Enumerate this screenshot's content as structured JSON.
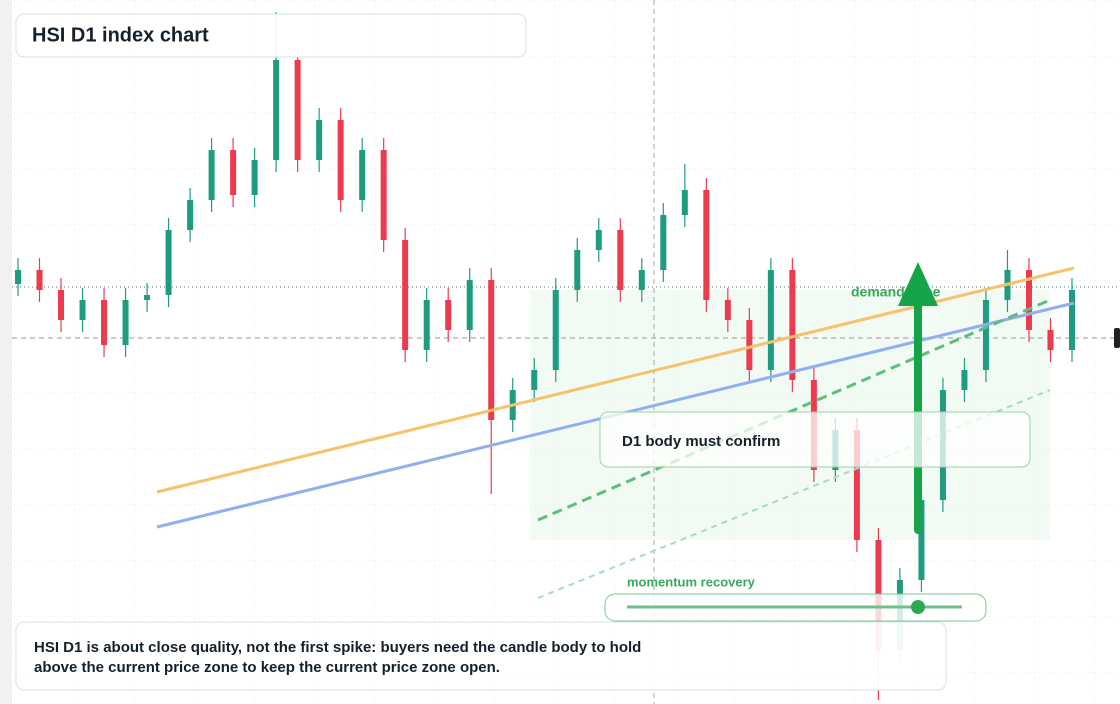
{
  "chart_data": {
    "type": "candlestick",
    "title": "HSI D1 index chart",
    "open": [
      420,
      434,
      414,
      384,
      404,
      359,
      404,
      409,
      474,
      504,
      554,
      509,
      544,
      644,
      544,
      584,
      504,
      554,
      464,
      354,
      404,
      374,
      424,
      284,
      314,
      334,
      414,
      454,
      474,
      414,
      434,
      489,
      514,
      404,
      384,
      334,
      434,
      324,
      234,
      274,
      164,
      54,
      124,
      204,
      314,
      334,
      404,
      434,
      374,
      354
    ],
    "high": [
      446,
      446,
      426,
      416,
      416,
      416,
      421,
      486,
      516,
      566,
      566,
      556,
      692,
      656,
      596,
      596,
      566,
      566,
      476,
      416,
      416,
      436,
      436,
      326,
      346,
      426,
      466,
      486,
      486,
      446,
      501,
      540,
      526,
      416,
      396,
      446,
      446,
      336,
      286,
      286,
      176,
      136,
      216,
      326,
      346,
      416,
      454,
      446,
      386,
      426
    ],
    "low": [
      408,
      402,
      372,
      372,
      347,
      347,
      392,
      397,
      462,
      492,
      497,
      497,
      532,
      532,
      532,
      492,
      492,
      452,
      342,
      342,
      362,
      362,
      210,
      272,
      302,
      322,
      402,
      442,
      402,
      402,
      422,
      477,
      392,
      372,
      322,
      322,
      312,
      222,
      222,
      152,
      4,
      42,
      112,
      192,
      302,
      322,
      392,
      362,
      342,
      342
    ],
    "close": [
      434,
      414,
      384,
      404,
      359,
      404,
      409,
      474,
      504,
      554,
      509,
      544,
      644,
      544,
      584,
      504,
      554,
      464,
      354,
      404,
      374,
      424,
      284,
      314,
      334,
      414,
      454,
      474,
      414,
      434,
      489,
      514,
      404,
      384,
      334,
      434,
      324,
      234,
      274,
      164,
      54,
      124,
      204,
      314,
      334,
      404,
      434,
      374,
      354,
      414
    ],
    "up_color": "#1f9c80",
    "down_color": "#ec3b4e",
    "ylim": [
      0,
      704
    ],
    "annotations": {
      "zone_label": "demand zone",
      "callout": "D1 body must confirm",
      "slider_label": "momentum recovery",
      "caption": [
        "HSI D1 is about close quality, not the first spike: buyers need the candle body to hold",
        "above the current price zone to keep the current price zone open."
      ]
    }
  }
}
